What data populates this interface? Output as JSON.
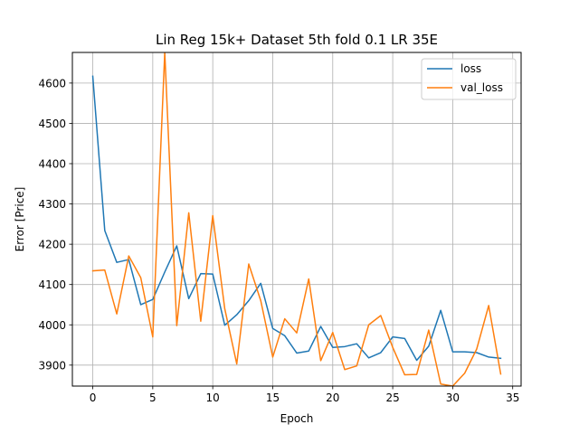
{
  "chart_data": {
    "type": "line",
    "title": "Lin Reg 15k+ Dataset 5th fold 0.1 LR 35E",
    "xlabel": "Epoch",
    "ylabel": "Error [Price]",
    "xlim": [
      -1.7,
      35.7
    ],
    "ylim": [
      3848,
      4676
    ],
    "xticks": [
      0,
      5,
      10,
      15,
      20,
      25,
      30,
      35
    ],
    "yticks": [
      3900,
      4000,
      4100,
      4200,
      4300,
      4400,
      4500,
      4600
    ],
    "grid": true,
    "legend_position": "top-right",
    "x": [
      0,
      1,
      2,
      3,
      4,
      5,
      6,
      7,
      8,
      9,
      10,
      11,
      12,
      13,
      14,
      15,
      16,
      17,
      18,
      19,
      20,
      21,
      22,
      23,
      24,
      25,
      26,
      27,
      28,
      29,
      30,
      31,
      32,
      33,
      34
    ],
    "series": [
      {
        "name": "loss",
        "color": "#1f77b4",
        "values": [
          4617,
          4234,
          4155,
          4162,
          4050,
          4063,
          4131,
          4196,
          4065,
          4127,
          4126,
          3999,
          4025,
          4060,
          4103,
          3991,
          3973,
          3930,
          3935,
          3996,
          3944,
          3946,
          3953,
          3918,
          3931,
          3970,
          3966,
          3912,
          3947,
          4036,
          3933,
          3933,
          3931,
          3920,
          3917
        ]
      },
      {
        "name": "val_loss",
        "color": "#ff7f0e",
        "values": [
          4134,
          4136,
          4027,
          4171,
          4117,
          3970,
          4676,
          3998,
          4278,
          4009,
          4271,
          4040,
          3903,
          4151,
          4060,
          3920,
          4015,
          3980,
          4114,
          3911,
          3981,
          3889,
          3898,
          4000,
          4023,
          3944,
          3876,
          3877,
          3987,
          3853,
          3848,
          3880,
          3940,
          4048,
          3878
        ]
      }
    ]
  }
}
